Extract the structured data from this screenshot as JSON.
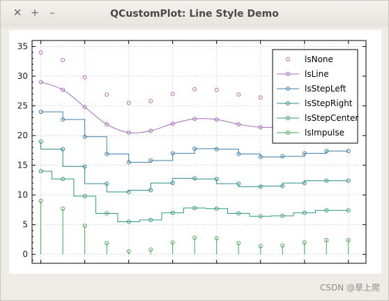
{
  "window": {
    "title": "QCustomPlot: Line Style Demo",
    "close_glyph": "✕",
    "maximize_glyph": "+",
    "minimize_glyph": "–"
  },
  "watermark": "CSDN @草上爬",
  "chart_data": {
    "type": "line",
    "title": "",
    "xlabel": "",
    "ylabel": "",
    "ylim": [
      -1.5,
      36
    ],
    "xlim": [
      -0.4,
      14.8
    ],
    "yticks": [
      0,
      5,
      10,
      15,
      20,
      25,
      30,
      35
    ],
    "grid": true,
    "legend_position": "top-right",
    "x": [
      0,
      1,
      2,
      3,
      4,
      5,
      6,
      7,
      8,
      9,
      10,
      11,
      12,
      13,
      14
    ],
    "series": [
      {
        "name": "lsNone",
        "style": "none",
        "color": "#b469b4",
        "values": [
          34,
          32.7,
          29.8,
          26.9,
          25.5,
          25.8,
          27.0,
          27.8,
          27.7,
          26.9,
          26.4,
          26.5,
          27.0,
          27.4,
          27.4
        ]
      },
      {
        "name": "lsLine",
        "style": "line",
        "color": "#a26bb8",
        "values": [
          29,
          27.7,
          24.8,
          21.9,
          20.5,
          20.8,
          22.0,
          22.8,
          22.7,
          21.9,
          21.4,
          21.5,
          22.0,
          22.4,
          22.4
        ]
      },
      {
        "name": "lsStepLeft",
        "style": "stepLeft",
        "color": "#3f7fa6",
        "values": [
          24,
          22.7,
          19.8,
          16.9,
          15.5,
          15.8,
          17.0,
          17.8,
          17.7,
          16.9,
          16.4,
          16.5,
          17.0,
          17.4,
          17.4
        ]
      },
      {
        "name": "lsStepRight",
        "style": "stepRight",
        "color": "#2f8a8c",
        "values": [
          19,
          17.7,
          14.8,
          11.9,
          10.5,
          10.8,
          12.0,
          12.8,
          12.7,
          11.9,
          11.4,
          11.5,
          12.0,
          12.4,
          12.4
        ]
      },
      {
        "name": "lsStepCenter",
        "style": "stepCenter",
        "color": "#2f9778",
        "values": [
          14,
          12.7,
          9.8,
          6.9,
          5.5,
          5.8,
          7.0,
          7.8,
          7.7,
          6.9,
          6.4,
          6.5,
          7.0,
          7.4,
          7.4
        ]
      },
      {
        "name": "lsImpulse",
        "style": "impulse",
        "color": "#4aa35a",
        "values": [
          9,
          7.7,
          4.8,
          1.9,
          0.5,
          0.8,
          2.0,
          2.8,
          2.7,
          1.9,
          1.4,
          1.5,
          2.0,
          2.4,
          2.4
        ]
      }
    ]
  }
}
